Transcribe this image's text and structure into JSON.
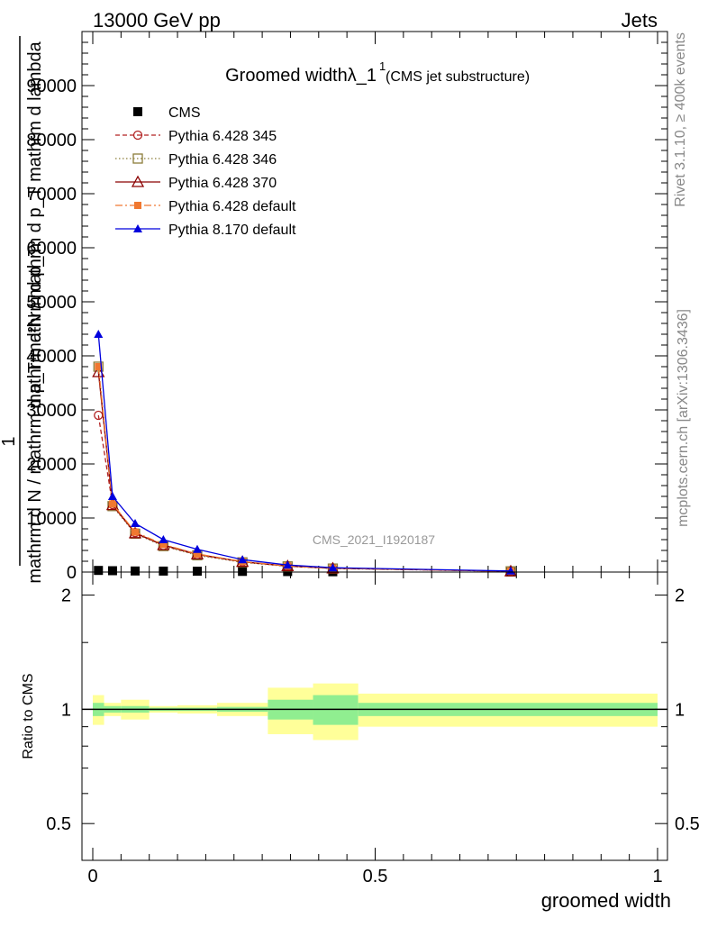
{
  "header": {
    "energy_label": "13000 GeV pp",
    "process_label": "Jets"
  },
  "side_labels": {
    "rivet": "Rivet 3.1.10, ≥ 400k events",
    "mcplots": "mcplots.cern.ch [arXiv:1306.3436]"
  },
  "chart_data": [
    {
      "type": "line",
      "title": "Groomed widthλ_1",
      "title_superscript": "1",
      "subtitle": "(CMS jet substructure)",
      "watermark": "CMS_2021_I1920187",
      "ylabel_numerator": "1",
      "ylabel_denominator": "mathrm d N / mathrm d p_T mathrm d p_T",
      "ylabel_right": "mathrm d²N / mathrm d p_T mathrm d lambda",
      "xlim": [
        0,
        1
      ],
      "ylim": [
        0,
        100000
      ],
      "yticks": [
        0,
        10000,
        20000,
        30000,
        40000,
        50000,
        60000,
        70000,
        80000,
        90000
      ],
      "ytick_labels": [
        "0",
        "10000",
        "20000",
        "30000",
        "40000",
        "50000",
        "60000",
        "70000",
        "80000",
        "90000"
      ],
      "x": [
        0.01,
        0.035,
        0.075,
        0.125,
        0.185,
        0.265,
        0.345,
        0.425,
        0.74
      ],
      "legend_position": "top-left",
      "series": [
        {
          "name": "CMS",
          "color": "#000000",
          "marker": "filled-square",
          "dash": "none",
          "values": [
            300,
            250,
            200,
            180,
            160,
            120,
            90,
            60,
            20
          ]
        },
        {
          "name": "Pythia 6.428 345",
          "color": "#b22222",
          "marker": "open-circle",
          "dash": "5,3",
          "values": [
            29000,
            12500,
            7300,
            4900,
            3200,
            1900,
            1100,
            700,
            150
          ]
        },
        {
          "name": "Pythia 6.428 346",
          "color": "#8b7d3a",
          "marker": "open-square",
          "dash": "1.5,2.5",
          "values": [
            38000,
            12200,
            7100,
            4800,
            3100,
            1800,
            1050,
            650,
            140
          ]
        },
        {
          "name": "Pythia 6.428 370",
          "color": "#8b0000",
          "marker": "open-triangle",
          "dash": "none",
          "values": [
            37000,
            12400,
            7200,
            5000,
            3300,
            1900,
            1100,
            700,
            150
          ]
        },
        {
          "name": "Pythia 6.428 default",
          "color": "#f07830",
          "marker": "filled-square-small",
          "dash": "8,3,2,3",
          "values": [
            38000,
            12600,
            7400,
            5100,
            3350,
            1950,
            1120,
            720,
            160
          ]
        },
        {
          "name": "Pythia 8.170 default",
          "color": "#0000dd",
          "marker": "filled-triangle",
          "dash": "none",
          "values": [
            44000,
            14000,
            9000,
            6000,
            4200,
            2300,
            1300,
            800,
            200
          ]
        }
      ]
    },
    {
      "type": "area",
      "ylabel": "Ratio to CMS",
      "xlabel": "groomed width",
      "xlim": [
        0,
        1
      ],
      "ylim": [
        0.4,
        2.3
      ],
      "log_scale_y": true,
      "yticks": [
        0.5,
        1,
        2
      ],
      "ytick_labels": [
        "0.5",
        "1",
        "2"
      ],
      "xticks": [
        0,
        0.5,
        1
      ],
      "xtick_labels": [
        "0",
        "0.5",
        "1"
      ],
      "reference_line": 1,
      "bins": [
        {
          "x0": 0.0,
          "x1": 0.02,
          "stat": 0.04,
          "total": 0.09
        },
        {
          "x0": 0.02,
          "x1": 0.05,
          "stat": 0.02,
          "total": 0.04
        },
        {
          "x0": 0.05,
          "x1": 0.1,
          "stat": 0.02,
          "total": 0.06
        },
        {
          "x0": 0.1,
          "x1": 0.15,
          "stat": 0.01,
          "total": 0.02
        },
        {
          "x0": 0.15,
          "x1": 0.22,
          "stat": 0.01,
          "total": 0.025
        },
        {
          "x0": 0.22,
          "x1": 0.31,
          "stat": 0.015,
          "total": 0.04
        },
        {
          "x0": 0.31,
          "x1": 0.39,
          "stat": 0.06,
          "total": 0.14
        },
        {
          "x0": 0.39,
          "x1": 0.47,
          "stat": 0.09,
          "total": 0.17
        },
        {
          "x0": 0.47,
          "x1": 1.0,
          "stat": 0.04,
          "total": 0.1
        }
      ],
      "stat_band_color": "#90ee90",
      "total_band_color": "#ffff99"
    }
  ]
}
